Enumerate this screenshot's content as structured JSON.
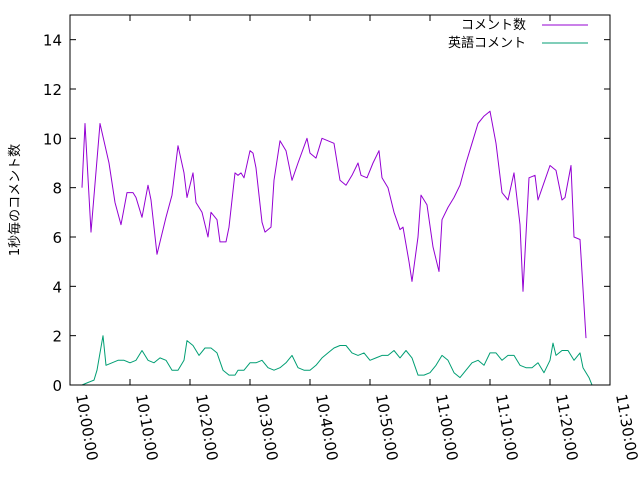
{
  "chart_data": {
    "type": "line",
    "title": "",
    "xlabel": "",
    "ylabel": "1秒毎のコメント数",
    "xlim": [
      "10:00:00",
      "11:30:00"
    ],
    "ylim": [
      0,
      15
    ],
    "x_ticks": [
      "10:00:00",
      "10:10:00",
      "10:20:00",
      "10:30:00",
      "10:40:00",
      "10:50:00",
      "11:00:00",
      "11:10:00",
      "11:20:00",
      "11:30:00"
    ],
    "y_ticks": [
      0,
      2,
      4,
      6,
      8,
      10,
      12,
      14
    ],
    "grid": false,
    "legend_position": "top-right",
    "series": [
      {
        "name": "コメント数",
        "color": "#9400d3",
        "points": [
          [
            "10:02:00",
            8.0
          ],
          [
            "10:02:30",
            10.6
          ],
          [
            "10:03:30",
            6.2
          ],
          [
            "10:05:00",
            10.6
          ],
          [
            "10:06:30",
            9.0
          ],
          [
            "10:07:30",
            7.4
          ],
          [
            "10:08:30",
            6.5
          ],
          [
            "10:09:30",
            7.8
          ],
          [
            "10:10:30",
            7.8
          ],
          [
            "10:11:00",
            7.6
          ],
          [
            "10:12:00",
            6.8
          ],
          [
            "10:13:00",
            8.1
          ],
          [
            "10:13:30",
            7.5
          ],
          [
            "10:14:30",
            5.3
          ],
          [
            "10:16:00",
            6.8
          ],
          [
            "10:17:00",
            7.7
          ],
          [
            "10:18:00",
            9.7
          ],
          [
            "10:19:00",
            8.6
          ],
          [
            "10:19:30",
            7.6
          ],
          [
            "10:20:30",
            8.6
          ],
          [
            "10:21:00",
            7.4
          ],
          [
            "10:22:00",
            7.0
          ],
          [
            "10:23:00",
            6.0
          ],
          [
            "10:23:30",
            7.0
          ],
          [
            "10:24:30",
            6.7
          ],
          [
            "10:25:00",
            5.8
          ],
          [
            "10:26:00",
            5.8
          ],
          [
            "10:26:30",
            6.4
          ],
          [
            "10:27:30",
            8.6
          ],
          [
            "10:28:00",
            8.5
          ],
          [
            "10:28:30",
            8.6
          ],
          [
            "10:29:00",
            8.4
          ],
          [
            "10:30:00",
            9.5
          ],
          [
            "10:30:30",
            9.4
          ],
          [
            "10:31:00",
            8.8
          ],
          [
            "10:32:00",
            6.6
          ],
          [
            "10:32:30",
            6.2
          ],
          [
            "10:33:30",
            6.4
          ],
          [
            "10:34:00",
            8.3
          ],
          [
            "10:35:00",
            9.9
          ],
          [
            "10:36:00",
            9.5
          ],
          [
            "10:37:00",
            8.3
          ],
          [
            "10:38:00",
            9.0
          ],
          [
            "10:39:30",
            10.0
          ],
          [
            "10:40:00",
            9.4
          ],
          [
            "10:41:00",
            9.2
          ],
          [
            "10:42:00",
            10.0
          ],
          [
            "10:43:00",
            9.9
          ],
          [
            "10:44:00",
            9.8
          ],
          [
            "10:45:00",
            8.3
          ],
          [
            "10:46:00",
            8.1
          ],
          [
            "10:47:00",
            8.5
          ],
          [
            "10:48:00",
            9.0
          ],
          [
            "10:48:30",
            8.5
          ],
          [
            "10:49:30",
            8.4
          ],
          [
            "10:50:30",
            9.0
          ],
          [
            "10:51:30",
            9.5
          ],
          [
            "10:52:00",
            8.4
          ],
          [
            "10:53:00",
            8.0
          ],
          [
            "10:54:00",
            7.0
          ],
          [
            "10:55:00",
            6.3
          ],
          [
            "10:55:30",
            6.4
          ],
          [
            "10:56:30",
            5.0
          ],
          [
            "10:57:00",
            4.2
          ],
          [
            "10:58:00",
            6.0
          ],
          [
            "10:58:30",
            7.7
          ],
          [
            "10:59:30",
            7.3
          ],
          [
            "11:00:30",
            5.6
          ],
          [
            "11:01:30",
            4.6
          ],
          [
            "11:02:00",
            6.7
          ],
          [
            "11:03:00",
            7.2
          ],
          [
            "11:04:00",
            7.6
          ],
          [
            "11:05:00",
            8.1
          ],
          [
            "11:06:00",
            9.0
          ],
          [
            "11:07:00",
            9.8
          ],
          [
            "11:08:00",
            10.6
          ],
          [
            "11:09:00",
            10.9
          ],
          [
            "11:10:00",
            11.1
          ],
          [
            "11:11:00",
            9.8
          ],
          [
            "11:12:00",
            7.8
          ],
          [
            "11:13:00",
            7.5
          ],
          [
            "11:14:00",
            8.6
          ],
          [
            "11:15:00",
            6.5
          ],
          [
            "11:15:30",
            3.8
          ],
          [
            "11:16:30",
            8.4
          ],
          [
            "11:17:30",
            8.5
          ],
          [
            "11:18:00",
            7.5
          ],
          [
            "11:19:00",
            8.2
          ],
          [
            "11:20:00",
            8.9
          ],
          [
            "11:21:00",
            8.7
          ],
          [
            "11:22:00",
            7.5
          ],
          [
            "11:22:30",
            7.6
          ],
          [
            "11:23:30",
            8.9
          ],
          [
            "11:24:00",
            6.0
          ],
          [
            "11:25:00",
            5.9
          ],
          [
            "11:26:00",
            1.9
          ]
        ]
      },
      {
        "name": "英語コメント",
        "color": "#009e73",
        "points": [
          [
            "10:02:00",
            0.0
          ],
          [
            "10:03:00",
            0.1
          ],
          [
            "10:04:00",
            0.2
          ],
          [
            "10:04:30",
            0.6
          ],
          [
            "10:05:30",
            2.0
          ],
          [
            "10:06:00",
            0.8
          ],
          [
            "10:07:00",
            0.9
          ],
          [
            "10:08:00",
            1.0
          ],
          [
            "10:09:00",
            1.0
          ],
          [
            "10:10:00",
            0.9
          ],
          [
            "10:11:00",
            1.0
          ],
          [
            "10:12:00",
            1.4
          ],
          [
            "10:13:00",
            1.0
          ],
          [
            "10:14:00",
            0.9
          ],
          [
            "10:15:00",
            1.1
          ],
          [
            "10:16:00",
            1.0
          ],
          [
            "10:17:00",
            0.6
          ],
          [
            "10:18:00",
            0.6
          ],
          [
            "10:19:00",
            1.0
          ],
          [
            "10:19:30",
            1.8
          ],
          [
            "10:20:30",
            1.6
          ],
          [
            "10:21:30",
            1.2
          ],
          [
            "10:22:30",
            1.5
          ],
          [
            "10:23:30",
            1.5
          ],
          [
            "10:24:30",
            1.3
          ],
          [
            "10:25:30",
            0.6
          ],
          [
            "10:26:30",
            0.4
          ],
          [
            "10:27:30",
            0.4
          ],
          [
            "10:28:00",
            0.6
          ],
          [
            "10:29:00",
            0.6
          ],
          [
            "10:30:00",
            0.9
          ],
          [
            "10:31:00",
            0.9
          ],
          [
            "10:32:00",
            1.0
          ],
          [
            "10:33:00",
            0.7
          ],
          [
            "10:34:00",
            0.6
          ],
          [
            "10:35:00",
            0.7
          ],
          [
            "10:36:00",
            0.9
          ],
          [
            "10:37:00",
            1.2
          ],
          [
            "10:38:00",
            0.7
          ],
          [
            "10:39:00",
            0.6
          ],
          [
            "10:40:00",
            0.6
          ],
          [
            "10:41:00",
            0.8
          ],
          [
            "10:42:00",
            1.1
          ],
          [
            "10:43:00",
            1.3
          ],
          [
            "10:44:00",
            1.5
          ],
          [
            "10:45:00",
            1.6
          ],
          [
            "10:46:00",
            1.6
          ],
          [
            "10:47:00",
            1.3
          ],
          [
            "10:48:00",
            1.2
          ],
          [
            "10:49:00",
            1.3
          ],
          [
            "10:50:00",
            1.0
          ],
          [
            "10:51:00",
            1.1
          ],
          [
            "10:52:00",
            1.2
          ],
          [
            "10:53:00",
            1.2
          ],
          [
            "10:54:00",
            1.4
          ],
          [
            "10:55:00",
            1.1
          ],
          [
            "10:56:00",
            1.4
          ],
          [
            "10:57:00",
            1.1
          ],
          [
            "10:58:00",
            0.4
          ],
          [
            "10:59:00",
            0.4
          ],
          [
            "11:00:00",
            0.5
          ],
          [
            "11:01:00",
            0.8
          ],
          [
            "11:02:00",
            1.2
          ],
          [
            "11:03:00",
            1.0
          ],
          [
            "11:04:00",
            0.5
          ],
          [
            "11:05:00",
            0.3
          ],
          [
            "11:06:00",
            0.6
          ],
          [
            "11:07:00",
            0.9
          ],
          [
            "11:08:00",
            1.0
          ],
          [
            "11:09:00",
            0.8
          ],
          [
            "11:10:00",
            1.3
          ],
          [
            "11:11:00",
            1.3
          ],
          [
            "11:12:00",
            1.0
          ],
          [
            "11:13:00",
            1.2
          ],
          [
            "11:14:00",
            1.2
          ],
          [
            "11:15:00",
            0.8
          ],
          [
            "11:16:00",
            0.7
          ],
          [
            "11:17:00",
            0.7
          ],
          [
            "11:18:00",
            0.9
          ],
          [
            "11:19:00",
            0.5
          ],
          [
            "11:20:00",
            1.0
          ],
          [
            "11:20:30",
            1.7
          ],
          [
            "11:21:00",
            1.2
          ],
          [
            "11:22:00",
            1.4
          ],
          [
            "11:23:00",
            1.4
          ],
          [
            "11:24:00",
            1.0
          ],
          [
            "11:25:00",
            1.3
          ],
          [
            "11:25:30",
            0.7
          ],
          [
            "11:26:30",
            0.3
          ],
          [
            "11:27:00",
            0.0
          ]
        ]
      }
    ]
  }
}
